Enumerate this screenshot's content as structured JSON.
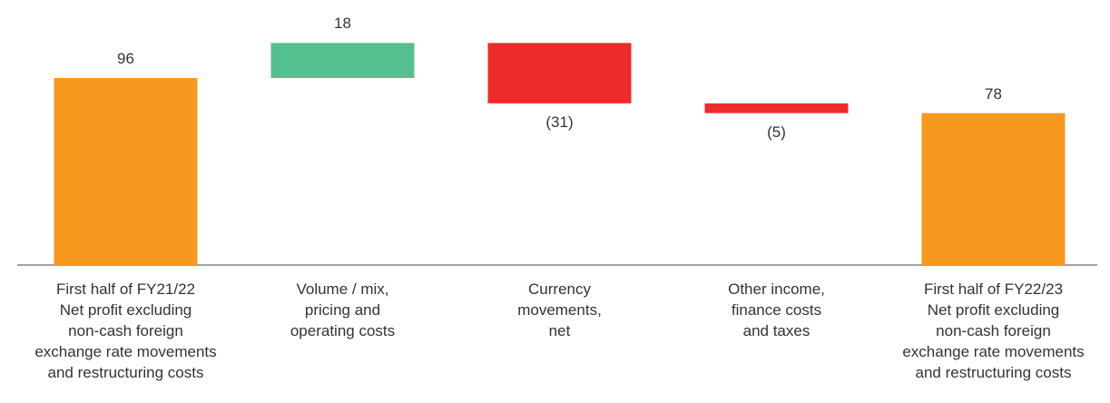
{
  "chart_data": {
    "type": "waterfall",
    "categories": [
      "First half of FY21/22\nNet profit excluding\nnon-cash foreign\nexchange rate movements\nand restructuring costs",
      "Volume / mix,\npricing and\noperating costs",
      "Currency\nmovements,\nnet",
      "Other income,\nfinance costs\nand taxes",
      "First half of FY22/23\nNet profit excluding\nnon-cash foreign\nexchange rate movements\nand restructuring costs"
    ],
    "values": [
      96,
      18,
      -31,
      -5,
      78
    ],
    "value_labels": [
      "96",
      "18",
      "(31)",
      "(5)",
      "78"
    ],
    "colors": [
      "#f7981f",
      "#54c08f",
      "#ee2b2b",
      "#ee2b2b",
      "#f7981f"
    ]
  }
}
